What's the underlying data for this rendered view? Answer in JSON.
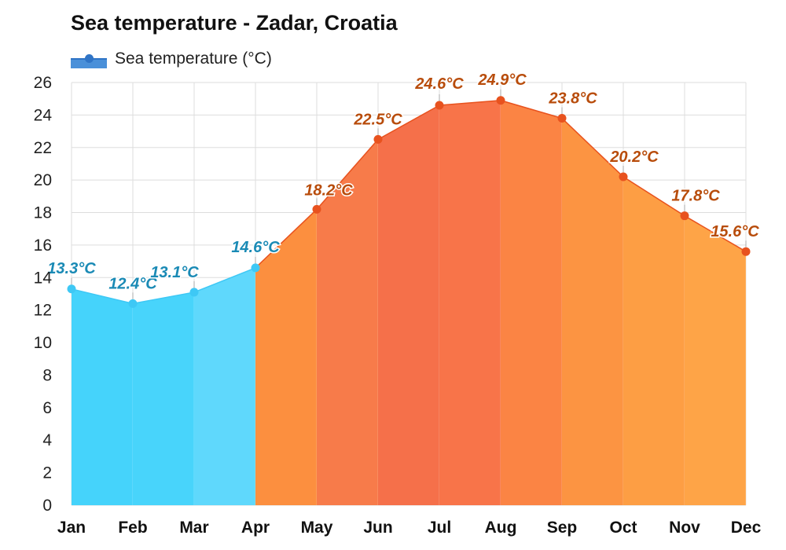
{
  "title": "Sea temperature - Zadar, Croatia",
  "legend": {
    "label": "Sea temperature (°C)"
  },
  "chart_data": {
    "type": "area",
    "title": "Sea temperature - Zadar, Croatia",
    "categories": [
      "Jan",
      "Feb",
      "Mar",
      "Apr",
      "May",
      "Jun",
      "Jul",
      "Aug",
      "Sep",
      "Oct",
      "Nov",
      "Dec"
    ],
    "series": [
      {
        "name": "Sea temperature (°C)",
        "values": [
          13.3,
          12.4,
          13.1,
          14.6,
          18.2,
          22.5,
          24.6,
          24.9,
          23.8,
          20.2,
          17.8,
          15.6
        ]
      }
    ],
    "value_labels": [
      "13.3°C",
      "12.4°C",
      "13.1°C",
      "14.6°C",
      "18.2°C",
      "22.5°C",
      "24.6°C",
      "24.9°C",
      "23.8°C",
      "20.2°C",
      "17.8°C",
      "15.6°C"
    ],
    "yticks": [
      0,
      2,
      4,
      6,
      8,
      10,
      12,
      14,
      16,
      18,
      20,
      22,
      24,
      26
    ],
    "ylim": [
      0,
      26
    ],
    "grid": true,
    "legend_position": "top-left",
    "colors": {
      "cool_fills": [
        "#45d3fb",
        "#48d4fb",
        "#5fd8fc"
      ],
      "cool_line": "#3ec8f5",
      "cool_label": "#1a8ab5",
      "warm_fills": [
        "#fc8f3f",
        "#f77b4a",
        "#f5704a",
        "#f87449",
        "#fb8444",
        "#fc9442",
        "#fd9e44",
        "#fea447"
      ],
      "warm_line": "#e8521e",
      "warm_label": "#b84c0b",
      "grid": "#dddddd"
    }
  }
}
